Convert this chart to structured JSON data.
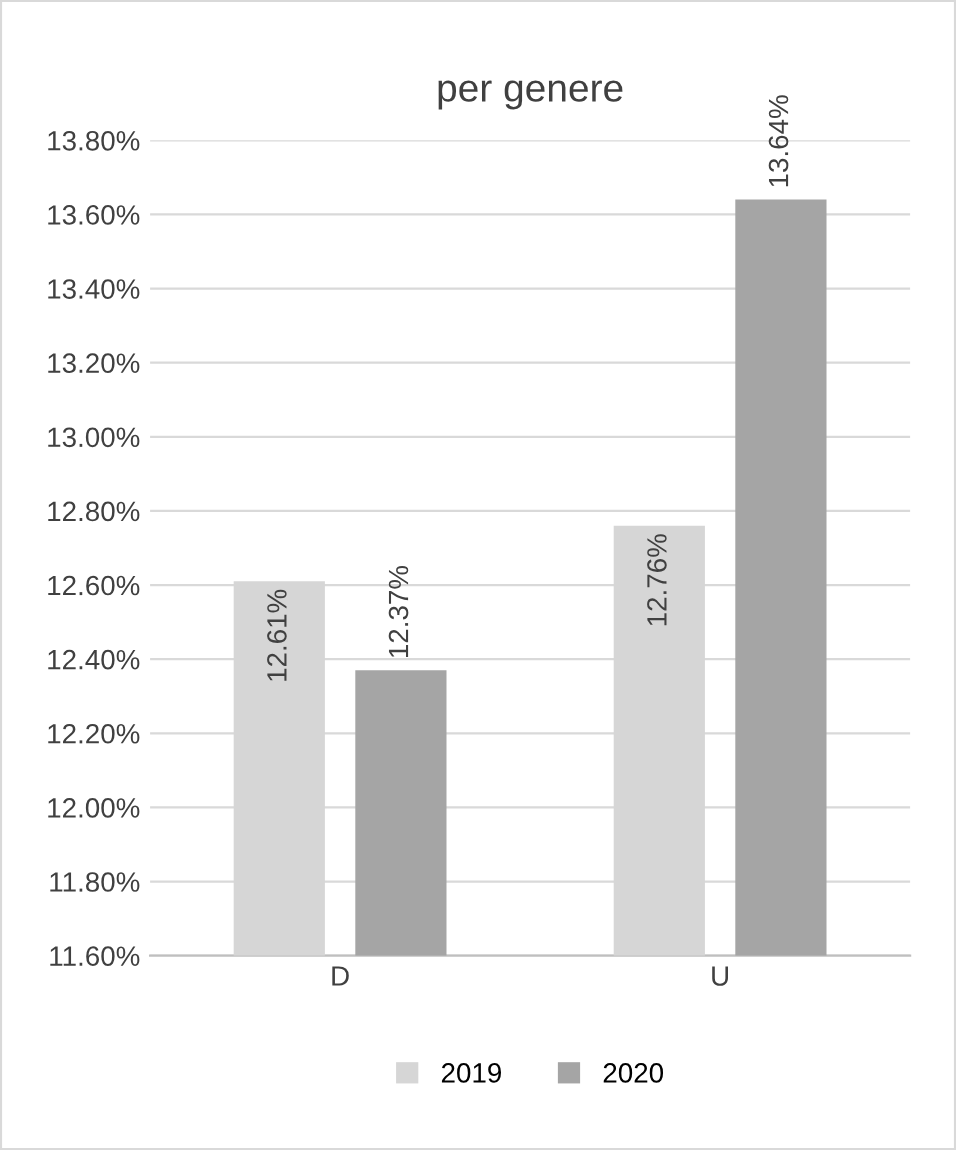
{
  "chart_data": {
    "type": "bar",
    "title": "per genere",
    "categories": [
      "D",
      "U"
    ],
    "series": [
      {
        "name": "2019",
        "color": "#d6d6d6",
        "values": [
          12.61,
          12.76
        ],
        "value_labels": [
          "12.61%",
          "12.76%"
        ]
      },
      {
        "name": "2020",
        "color": "#a5a5a5",
        "values": [
          12.37,
          13.64
        ],
        "value_labels": [
          "12.37%",
          "13.64%"
        ]
      }
    ],
    "ylim": [
      11.6,
      13.8
    ],
    "yticks": [
      {
        "value": 11.6,
        "label": "11.60%"
      },
      {
        "value": 11.8,
        "label": "11.80%"
      },
      {
        "value": 12.0,
        "label": "12.00%"
      },
      {
        "value": 12.2,
        "label": "12.20%"
      },
      {
        "value": 12.4,
        "label": "12.40%"
      },
      {
        "value": 12.6,
        "label": "12.60%"
      },
      {
        "value": 12.8,
        "label": "12.80%"
      },
      {
        "value": 13.0,
        "label": "13.00%"
      },
      {
        "value": 13.2,
        "label": "13.20%"
      },
      {
        "value": 13.4,
        "label": "13.40%"
      },
      {
        "value": 13.6,
        "label": "13.60%"
      },
      {
        "value": 13.8,
        "label": "13.80%"
      }
    ],
    "grid": "y",
    "legend": "bottom"
  }
}
